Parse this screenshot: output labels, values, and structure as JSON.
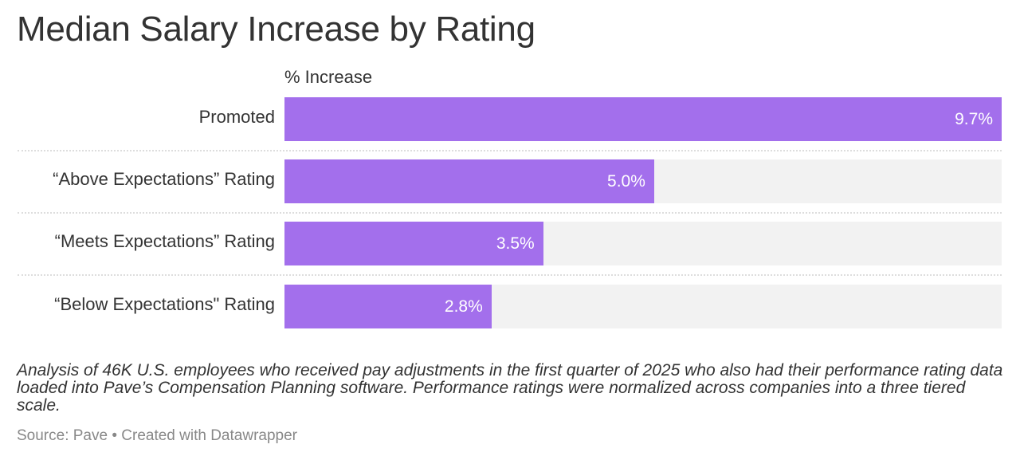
{
  "chart_data": {
    "type": "bar",
    "orientation": "horizontal",
    "title": "Median Salary Increase by Rating",
    "column_header": "% Increase",
    "categories": [
      "Promoted",
      "“Above Expectations” Rating",
      "“Meets Expectations” Rating",
      "“Below Expectations\" Rating"
    ],
    "values": [
      9.7,
      5.0,
      3.5,
      2.8
    ],
    "value_labels": [
      "9.7%",
      "5.0%",
      "3.5%",
      "2.8%"
    ],
    "xlim": [
      0,
      9.7
    ],
    "bar_color": "#a36fec",
    "track_color": "#f2f2f2",
    "notes": "Analysis of 46K U.S. employees who received pay adjustments in the first quarter of 2025 who also had their performance rating data loaded into Pave’s Compensation Planning software. Performance ratings were normalized across companies into a three tiered scale.",
    "source": "Source: Pave • Created with Datawrapper"
  }
}
